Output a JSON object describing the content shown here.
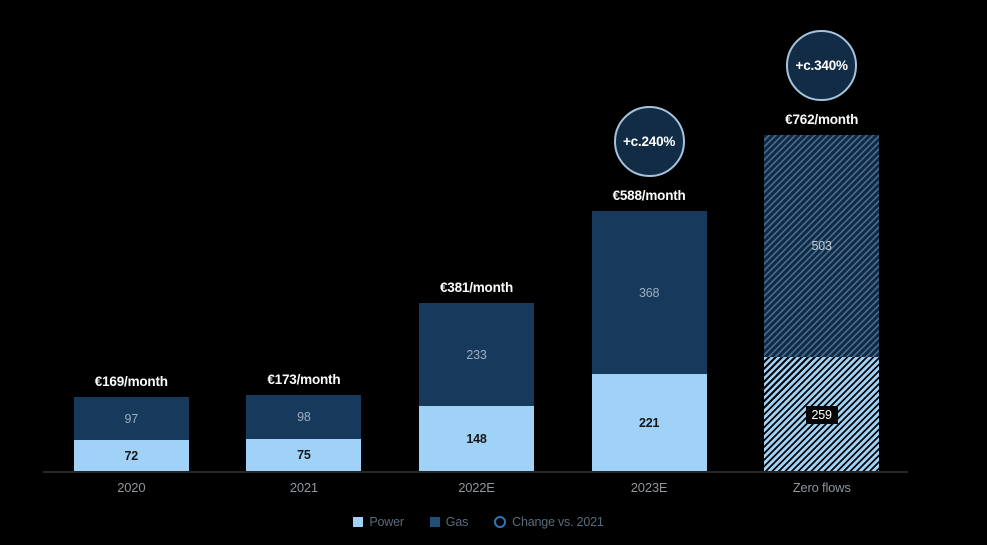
{
  "chart_data": {
    "type": "bar",
    "stacked": true,
    "unit": "EUR/month",
    "categories": [
      "2020",
      "2021",
      "2022E",
      "2023E",
      "Zero flows"
    ],
    "series": [
      {
        "name": "Power",
        "values": [
          72,
          75,
          148,
          221,
          259
        ]
      },
      {
        "name": "Gas",
        "values": [
          97,
          98,
          233,
          368,
          503
        ]
      }
    ],
    "totals": [
      169,
      173,
      381,
      588,
      762
    ],
    "total_labels": [
      "€169/month",
      "€173/month",
      "€381/month",
      "€588/month",
      "€762/month"
    ],
    "change_badges": [
      null,
      null,
      null,
      "+c.240%",
      "+c.340%"
    ],
    "hatched": [
      false,
      false,
      false,
      false,
      true
    ],
    "ylim": [
      0,
      800
    ],
    "grid": false,
    "legend_position": "bottom",
    "legend": [
      {
        "label": "Power",
        "icon": "square-power-icon",
        "type": "square",
        "color": "#A0D2F7"
      },
      {
        "label": "Gas",
        "icon": "square-gas-icon",
        "type": "square",
        "color": "#1F4E79"
      },
      {
        "label": "Change vs. 2021",
        "icon": "circle-outline-icon",
        "type": "circle",
        "color": "#2E75B6"
      }
    ],
    "colors": {
      "background": "#000000",
      "power": "#A0D2F7",
      "gas": "#17395C",
      "gas_hatch_stripe": "#43688C",
      "badge_fill": "#122C46",
      "badge_border": "#A5C3DD",
      "total_label_text": "#FAFAFA",
      "axis_line": "#272727",
      "axis_label_text": "#8E959C",
      "legend_text": "#5A6B7C"
    }
  }
}
